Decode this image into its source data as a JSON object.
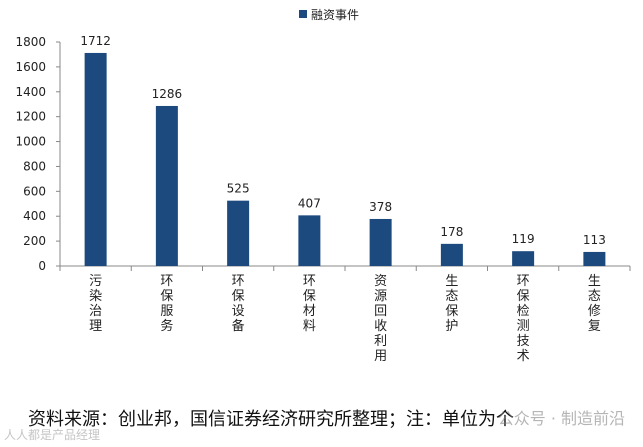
{
  "chart_data": {
    "type": "bar",
    "legend": {
      "label": "融资事件",
      "position": "top"
    },
    "categories": [
      "污染治理",
      "环保服务",
      "环保设备",
      "环保材料",
      "资源回收利用",
      "生态保护",
      "环保检测技术",
      "生态修复"
    ],
    "values": [
      1712,
      1286,
      525,
      407,
      378,
      178,
      119,
      113
    ],
    "data_labels": [
      "1712",
      "1286",
      "525",
      "407",
      "378",
      "178",
      "119",
      "113"
    ],
    "y_ticks": [
      0,
      200,
      400,
      600,
      800,
      1000,
      1200,
      1400,
      1600,
      1800
    ],
    "ylim": [
      0,
      1800
    ],
    "bar_color": "#1c4a7e",
    "title": "",
    "xlabel": "",
    "ylabel": ""
  },
  "footer": {
    "source": "资料来源：创业邦，国信证券经济研究所整理；注：单位为个",
    "watermark_right": "公众号 · 制造前沿",
    "watermark_left": "人人都是产品经理"
  }
}
